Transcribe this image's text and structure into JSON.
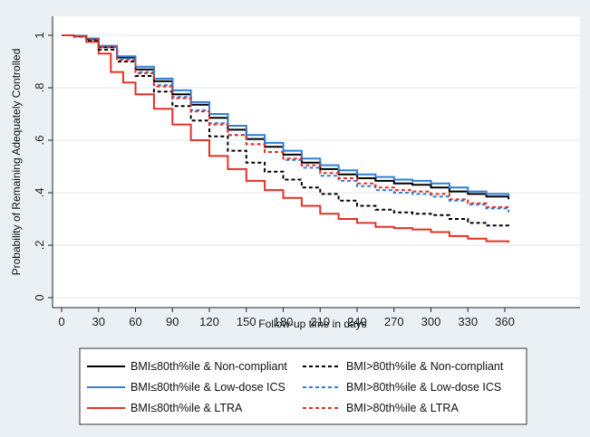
{
  "chart_data": {
    "type": "line",
    "title": "",
    "xlabel": "Follow-up time in days",
    "ylabel": "Probability of Remaining Adequately Controlled",
    "xlim": [
      0,
      365
    ],
    "ylim": [
      0,
      1
    ],
    "x_ticks": [
      0,
      30,
      60,
      90,
      120,
      150,
      180,
      210,
      240,
      270,
      300,
      330,
      360
    ],
    "y_ticks": [
      {
        "value": 0,
        "label": "0"
      },
      {
        "value": 0.2,
        "label": ".2"
      },
      {
        "value": 0.4,
        "label": ".4"
      },
      {
        "value": 0.6,
        "label": ".6"
      },
      {
        "value": 0.8,
        "label": ".8"
      },
      {
        "value": 1,
        "label": "1"
      }
    ],
    "grid": "horizontal",
    "legend_position": "bottom",
    "series": [
      {
        "name": "BMI≤80th%ile & Non-compliant",
        "color": "#000000",
        "dash": "solid",
        "points": [
          [
            0,
            1
          ],
          [
            10,
            0.998
          ],
          [
            20,
            0.985
          ],
          [
            30,
            0.955
          ],
          [
            45,
            0.915
          ],
          [
            60,
            0.87
          ],
          [
            75,
            0.825
          ],
          [
            90,
            0.775
          ],
          [
            105,
            0.735
          ],
          [
            120,
            0.685
          ],
          [
            135,
            0.64
          ],
          [
            150,
            0.605
          ],
          [
            165,
            0.575
          ],
          [
            180,
            0.545
          ],
          [
            195,
            0.515
          ],
          [
            210,
            0.49
          ],
          [
            225,
            0.47
          ],
          [
            240,
            0.455
          ],
          [
            255,
            0.445
          ],
          [
            270,
            0.435
          ],
          [
            285,
            0.43
          ],
          [
            300,
            0.42
          ],
          [
            315,
            0.405
          ],
          [
            330,
            0.395
          ],
          [
            345,
            0.385
          ],
          [
            363,
            0.375
          ]
        ]
      },
      {
        "name": "BMI≤80th%ile & Low-dose ICS",
        "color": "#2f7fd6",
        "dash": "solid",
        "points": [
          [
            0,
            1
          ],
          [
            10,
            0.998
          ],
          [
            20,
            0.988
          ],
          [
            30,
            0.96
          ],
          [
            45,
            0.92
          ],
          [
            60,
            0.88
          ],
          [
            75,
            0.835
          ],
          [
            90,
            0.79
          ],
          [
            105,
            0.745
          ],
          [
            120,
            0.7
          ],
          [
            135,
            0.655
          ],
          [
            150,
            0.62
          ],
          [
            165,
            0.59
          ],
          [
            180,
            0.56
          ],
          [
            195,
            0.53
          ],
          [
            210,
            0.505
          ],
          [
            225,
            0.485
          ],
          [
            240,
            0.47
          ],
          [
            255,
            0.46
          ],
          [
            270,
            0.45
          ],
          [
            285,
            0.445
          ],
          [
            300,
            0.435
          ],
          [
            315,
            0.42
          ],
          [
            330,
            0.405
          ],
          [
            345,
            0.395
          ],
          [
            363,
            0.385
          ]
        ]
      },
      {
        "name": "BMI≤80th%ile & LTRA",
        "color": "#e23226",
        "dash": "solid",
        "points": [
          [
            0,
            1
          ],
          [
            10,
            0.995
          ],
          [
            20,
            0.975
          ],
          [
            30,
            0.93
          ],
          [
            40,
            0.86
          ],
          [
            50,
            0.82
          ],
          [
            60,
            0.775
          ],
          [
            75,
            0.72
          ],
          [
            90,
            0.66
          ],
          [
            105,
            0.6
          ],
          [
            120,
            0.54
          ],
          [
            135,
            0.49
          ],
          [
            150,
            0.445
          ],
          [
            165,
            0.41
          ],
          [
            180,
            0.38
          ],
          [
            195,
            0.35
          ],
          [
            210,
            0.32
          ],
          [
            225,
            0.3
          ],
          [
            240,
            0.285
          ],
          [
            255,
            0.27
          ],
          [
            270,
            0.265
          ],
          [
            285,
            0.26
          ],
          [
            300,
            0.25
          ],
          [
            315,
            0.235
          ],
          [
            330,
            0.225
          ],
          [
            345,
            0.215
          ],
          [
            363,
            0.21
          ]
        ]
      },
      {
        "name": "BMI>80th%ile & Non-compliant",
        "color": "#000000",
        "dash": "dashed",
        "points": [
          [
            0,
            1
          ],
          [
            10,
            0.995
          ],
          [
            20,
            0.98
          ],
          [
            30,
            0.945
          ],
          [
            45,
            0.9
          ],
          [
            60,
            0.845
          ],
          [
            75,
            0.785
          ],
          [
            90,
            0.73
          ],
          [
            105,
            0.675
          ],
          [
            120,
            0.615
          ],
          [
            135,
            0.56
          ],
          [
            150,
            0.515
          ],
          [
            165,
            0.48
          ],
          [
            180,
            0.45
          ],
          [
            195,
            0.42
          ],
          [
            210,
            0.395
          ],
          [
            225,
            0.37
          ],
          [
            240,
            0.35
          ],
          [
            255,
            0.335
          ],
          [
            270,
            0.325
          ],
          [
            285,
            0.32
          ],
          [
            300,
            0.315
          ],
          [
            315,
            0.3
          ],
          [
            330,
            0.285
          ],
          [
            345,
            0.275
          ],
          [
            363,
            0.268
          ]
        ]
      },
      {
        "name": "BMI>80th%ile & Low-dose ICS",
        "color": "#2f7fd6",
        "dash": "dashed",
        "points": [
          [
            0,
            1
          ],
          [
            10,
            0.997
          ],
          [
            20,
            0.985
          ],
          [
            30,
            0.955
          ],
          [
            45,
            0.91
          ],
          [
            60,
            0.86
          ],
          [
            75,
            0.81
          ],
          [
            90,
            0.765
          ],
          [
            105,
            0.715
          ],
          [
            120,
            0.665
          ],
          [
            135,
            0.62
          ],
          [
            150,
            0.585
          ],
          [
            165,
            0.555
          ],
          [
            180,
            0.525
          ],
          [
            195,
            0.495
          ],
          [
            210,
            0.465
          ],
          [
            225,
            0.445
          ],
          [
            240,
            0.425
          ],
          [
            255,
            0.41
          ],
          [
            270,
            0.4
          ],
          [
            285,
            0.395
          ],
          [
            300,
            0.385
          ],
          [
            315,
            0.37
          ],
          [
            330,
            0.355
          ],
          [
            345,
            0.34
          ],
          [
            363,
            0.325
          ]
        ]
      },
      {
        "name": "BMI>80th%ile & LTRA",
        "color": "#e23226",
        "dash": "dashed",
        "points": [
          [
            0,
            1
          ],
          [
            10,
            0.997
          ],
          [
            20,
            0.985
          ],
          [
            30,
            0.955
          ],
          [
            45,
            0.905
          ],
          [
            60,
            0.855
          ],
          [
            75,
            0.805
          ],
          [
            90,
            0.76
          ],
          [
            105,
            0.71
          ],
          [
            120,
            0.66
          ],
          [
            135,
            0.62
          ],
          [
            150,
            0.585
          ],
          [
            165,
            0.555
          ],
          [
            180,
            0.53
          ],
          [
            195,
            0.505
          ],
          [
            210,
            0.475
          ],
          [
            225,
            0.455
          ],
          [
            240,
            0.435
          ],
          [
            255,
            0.42
          ],
          [
            270,
            0.41
          ],
          [
            285,
            0.405
          ],
          [
            300,
            0.395
          ],
          [
            315,
            0.375
          ],
          [
            330,
            0.36
          ],
          [
            345,
            0.345
          ],
          [
            363,
            0.335
          ]
        ]
      }
    ]
  }
}
